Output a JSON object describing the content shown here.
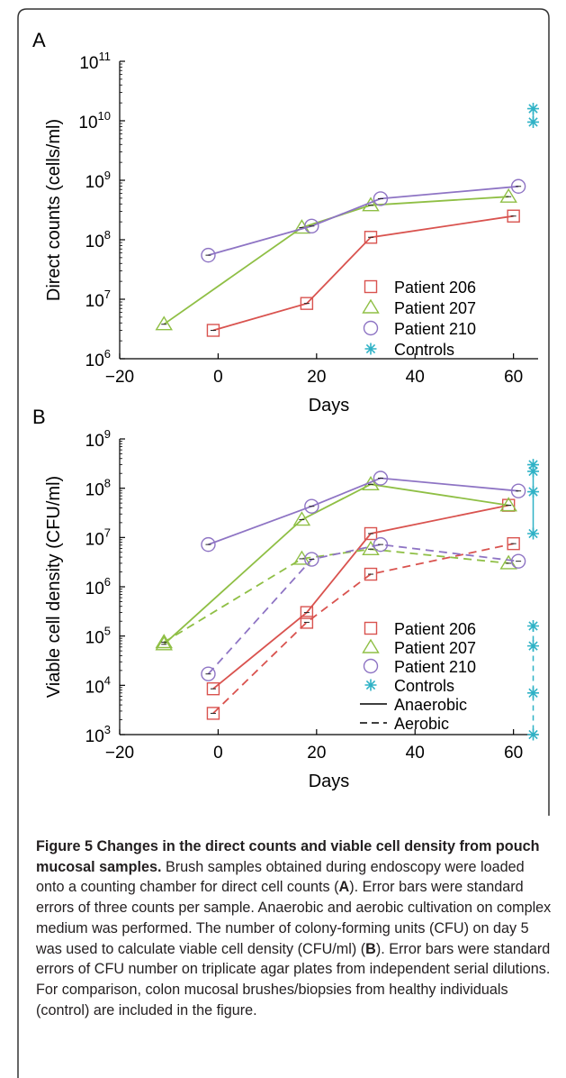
{
  "colors": {
    "patient206": "#d9534f",
    "patient207": "#8fbf45",
    "patient210": "#8e74c4",
    "controls": "#2fb2c6",
    "axis": "#000000",
    "border": "#333333"
  },
  "icons": {
    "patient206": "square-marker",
    "patient207": "triangle-marker",
    "patient210": "circle-marker",
    "controls": "asterisk-marker"
  },
  "chart_data": [
    {
      "panel_label": "A",
      "type": "line",
      "yscale": "log",
      "xlabel": "Days",
      "ylabel": "Direct counts (cells/ml)",
      "xlim": [
        -20,
        65
      ],
      "ylim": [
        1000000,
        100000000000
      ],
      "xticks": [
        -20,
        0,
        20,
        40,
        60
      ],
      "xtick_labels": [
        "−20",
        "0",
        "20",
        "40",
        "60"
      ],
      "yticks": [
        1000000,
        10000000,
        100000000,
        1000000000,
        10000000000,
        100000000000
      ],
      "ytick_bases": [
        "10",
        "10",
        "10",
        "10",
        "10",
        "10"
      ],
      "ytick_exponents": [
        "6",
        "7",
        "8",
        "9",
        "10",
        "11"
      ],
      "grid": false,
      "legend": "bottom-right",
      "series": [
        {
          "name": "Patient 206",
          "marker": "square",
          "x": [
            -1,
            18,
            31,
            60
          ],
          "y": [
            3000000,
            8500000,
            110000000,
            250000000
          ]
        },
        {
          "name": "Patient 207",
          "marker": "triangle",
          "x": [
            -11,
            17,
            31,
            59
          ],
          "y": [
            3800000,
            160000000,
            380000000,
            530000000
          ]
        },
        {
          "name": "Patient 210",
          "marker": "circle",
          "x": [
            -2,
            19,
            33,
            61
          ],
          "y": [
            55000000,
            170000000,
            490000000,
            790000000
          ]
        },
        {
          "name": "Controls",
          "marker": "asterisk",
          "x": [
            64,
            64
          ],
          "y": [
            16000000000,
            9500000000
          ]
        }
      ]
    },
    {
      "panel_label": "B",
      "type": "line",
      "yscale": "log",
      "xlabel": "Days",
      "ylabel": "Viable cell density  (CFU/ml)",
      "xlim": [
        -20,
        65
      ],
      "ylim": [
        1000,
        1000000000
      ],
      "xticks": [
        -20,
        0,
        20,
        40,
        60
      ],
      "xtick_labels": [
        "−20",
        "0",
        "20",
        "40",
        "60"
      ],
      "yticks": [
        1000,
        10000,
        100000,
        1000000,
        10000000,
        100000000,
        1000000000
      ],
      "ytick_bases": [
        "10",
        "10",
        "10",
        "10",
        "10",
        "10",
        "10"
      ],
      "ytick_exponents": [
        "3",
        "4",
        "5",
        "6",
        "7",
        "8",
        "9"
      ],
      "grid": false,
      "legend": "bottom-right",
      "series": [
        {
          "name": "Patient 206",
          "condition": "Anaerobic",
          "marker": "square",
          "x": [
            -1,
            18,
            31,
            59
          ],
          "y": [
            8500,
            300000,
            12000000,
            45000000
          ]
        },
        {
          "name": "Patient 206",
          "condition": "Aerobic",
          "marker": "square",
          "x": [
            -1,
            18,
            31,
            60
          ],
          "y": [
            2700,
            190000,
            1800000,
            7500000
          ]
        },
        {
          "name": "Patient 207",
          "condition": "Anaerobic",
          "marker": "triangle",
          "x": [
            -11,
            17,
            31,
            59
          ],
          "y": [
            68000,
            23000000,
            120000000,
            45000000
          ]
        },
        {
          "name": "Patient 207",
          "condition": "Aerobic",
          "marker": "triangle",
          "x": [
            -11,
            17,
            31,
            59
          ],
          "y": [
            75000,
            3700000,
            5800000,
            3000000
          ]
        },
        {
          "name": "Patient 210",
          "condition": "Anaerobic",
          "marker": "circle",
          "x": [
            -2,
            19,
            33,
            61
          ],
          "y": [
            7200000,
            43000000,
            160000000,
            88000000
          ]
        },
        {
          "name": "Patient 210",
          "condition": "Aerobic",
          "marker": "circle",
          "x": [
            -2,
            19,
            33,
            61
          ],
          "y": [
            17000,
            3600000,
            7200000,
            3300000
          ]
        },
        {
          "name": "Controls",
          "condition": "Anaerobic",
          "marker": "asterisk",
          "x": [
            64,
            64,
            64,
            64
          ],
          "y": [
            300000000,
            220000000,
            85000000,
            12000000
          ]
        },
        {
          "name": "Controls",
          "condition": "Aerobic",
          "marker": "asterisk",
          "x": [
            64,
            64,
            64,
            64
          ],
          "y": [
            160000,
            63000,
            7000,
            1000
          ]
        }
      ],
      "line_styles": [
        {
          "name": "Anaerobic",
          "style": "solid"
        },
        {
          "name": "Aerobic",
          "style": "dashed"
        }
      ]
    }
  ],
  "caption": {
    "title": "Figure 5 Changes in the direct counts and viable cell density from pouch mucosal samples.",
    "p1": " Brush samples obtained during endoscopy were loaded onto a counting chamber for direct cell counts (",
    "ref_a": "A",
    "p2": "). Error bars were standard errors of three counts per sample. Anaerobic and aerobic cultivation on complex medium was performed. The number of colony-forming units (CFU) on day 5 was used to calculate viable cell density (CFU/ml) (",
    "ref_b": "B",
    "p3": "). Error bars were standard errors of CFU number on triplicate agar plates from independent serial dilutions. For comparison, colon mucosal brushes/biopsies from healthy individuals (control) are included in the figure."
  }
}
